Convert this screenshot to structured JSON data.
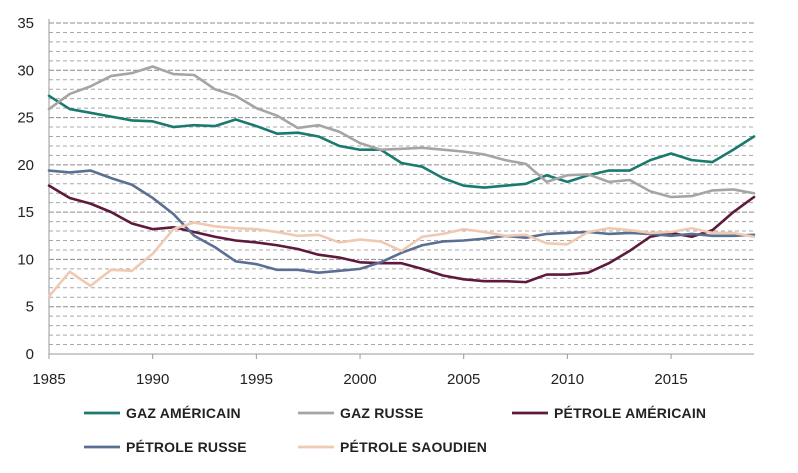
{
  "chart_data": {
    "type": "line",
    "title": "",
    "xlabel": "",
    "ylabel": "",
    "xlim": [
      1985,
      2019
    ],
    "ylim": [
      0,
      35
    ],
    "x_ticks": [
      1985,
      1990,
      1995,
      2000,
      2005,
      2010,
      2015
    ],
    "y_ticks": [
      0,
      5,
      10,
      15,
      20,
      25,
      30,
      35
    ],
    "grid": "horizontal",
    "legend_position": "bottom",
    "x": [
      1985,
      1986,
      1987,
      1988,
      1989,
      1990,
      1991,
      1992,
      1993,
      1994,
      1995,
      1996,
      1997,
      1998,
      1999,
      2000,
      2001,
      2002,
      2003,
      2004,
      2005,
      2006,
      2007,
      2008,
      2009,
      2010,
      2011,
      2012,
      2013,
      2014,
      2015,
      2016,
      2017,
      2018,
      2019
    ],
    "series": [
      {
        "name": "GAZ AMÉRICAIN",
        "color": "#1a7a6e",
        "values": [
          27.3,
          25.9,
          25.5,
          25.1,
          24.7,
          24.6,
          24.0,
          24.2,
          24.1,
          24.8,
          24.1,
          23.3,
          23.4,
          23.0,
          22.0,
          21.6,
          21.6,
          20.2,
          19.8,
          18.6,
          17.8,
          17.6,
          17.8,
          18.0,
          18.9,
          18.2,
          18.9,
          19.4,
          19.4,
          20.5,
          21.2,
          20.5,
          20.3,
          21.6,
          23.0
        ]
      },
      {
        "name": "GAZ RUSSE",
        "color": "#a5a5a5",
        "values": [
          25.9,
          27.5,
          28.3,
          29.4,
          29.7,
          30.4,
          29.6,
          29.5,
          28.0,
          27.3,
          26.0,
          25.2,
          23.9,
          24.2,
          23.5,
          22.3,
          21.6,
          21.7,
          21.8,
          21.6,
          21.4,
          21.1,
          20.5,
          20.1,
          18.2,
          18.9,
          19.0,
          18.2,
          18.4,
          17.2,
          16.6,
          16.7,
          17.3,
          17.4,
          17.0
        ]
      },
      {
        "name": "PÉTROLE AMÉRICAIN",
        "color": "#5e1a3c",
        "values": [
          17.8,
          16.5,
          15.9,
          15.0,
          13.8,
          13.2,
          13.4,
          12.9,
          12.4,
          12.0,
          11.8,
          11.5,
          11.1,
          10.5,
          10.2,
          9.7,
          9.6,
          9.6,
          9.0,
          8.3,
          7.9,
          7.7,
          7.7,
          7.6,
          8.4,
          8.4,
          8.6,
          9.6,
          10.9,
          12.4,
          12.8,
          12.4,
          13.1,
          15.0,
          16.6
        ]
      },
      {
        "name": "PÉTROLE RUSSE",
        "color": "#5b6f93",
        "values": [
          19.4,
          19.2,
          19.4,
          18.6,
          17.9,
          16.5,
          14.8,
          12.5,
          11.3,
          9.8,
          9.5,
          8.9,
          8.9,
          8.6,
          8.8,
          9.0,
          9.7,
          10.7,
          11.5,
          11.9,
          12.0,
          12.2,
          12.5,
          12.3,
          12.7,
          12.8,
          12.9,
          12.7,
          12.8,
          12.7,
          12.5,
          12.7,
          12.5,
          12.5,
          12.6
        ]
      },
      {
        "name": "PÉTROLE SAOUDIEN",
        "color": "#f0c9b3",
        "values": [
          6.1,
          8.7,
          7.2,
          8.9,
          8.8,
          10.6,
          13.2,
          13.9,
          13.5,
          13.3,
          13.2,
          12.9,
          12.5,
          12.6,
          11.8,
          12.1,
          11.9,
          10.9,
          12.4,
          12.7,
          13.2,
          12.9,
          12.5,
          12.6,
          11.7,
          11.6,
          12.9,
          13.3,
          13.1,
          12.8,
          12.9,
          13.3,
          12.8,
          12.8,
          12.4
        ]
      }
    ]
  }
}
